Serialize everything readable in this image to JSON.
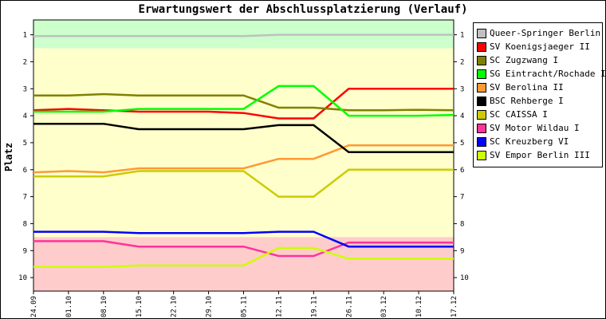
{
  "chart_data": {
    "type": "line",
    "title": "Erwartungswert der Abschlussplatzierung (Verlauf)",
    "ylabel": "Platz",
    "xlabel": "",
    "categories": [
      "24.09",
      "01.10",
      "08.10",
      "15.10",
      "22.10",
      "29.10",
      "05.11",
      "12.11",
      "19.11",
      "26.11",
      "03.12",
      "10.12",
      "17.12"
    ],
    "yticks": [
      1,
      2,
      3,
      4,
      5,
      6,
      7,
      8,
      9,
      10
    ],
    "ylim": [
      0.45,
      10.5
    ],
    "y_inverted": true,
    "legend_position": "right",
    "background_bands": [
      {
        "from": 0.45,
        "to": 1.5,
        "color": "#ccffcc"
      },
      {
        "from": 1.5,
        "to": 8.5,
        "color": "#ffffcc"
      },
      {
        "from": 8.5,
        "to": 10.5,
        "color": "#ffcccc"
      }
    ],
    "series": [
      {
        "name": "Queer-Springer Berlin I",
        "color": "#c0c0c0",
        "values": [
          1.05,
          1.05,
          1.05,
          1.05,
          1.05,
          1.05,
          1.05,
          1.0,
          1.0,
          1.0,
          1.0,
          1.0,
          1.0
        ]
      },
      {
        "name": "SV Koenigsjaeger II",
        "color": "#ff0000",
        "values": [
          3.8,
          3.75,
          3.8,
          3.85,
          3.85,
          3.85,
          3.9,
          4.1,
          4.1,
          3.0,
          3.0,
          3.0,
          3.0
        ]
      },
      {
        "name": "SC Zugzwang I",
        "color": "#808000",
        "values": [
          3.25,
          3.25,
          3.2,
          3.25,
          3.25,
          3.25,
          3.25,
          3.7,
          3.7,
          3.8,
          3.8,
          3.78,
          3.8
        ]
      },
      {
        "name": "SG Eintracht/Rochade I",
        "color": "#00ff00",
        "values": [
          3.85,
          3.85,
          3.85,
          3.75,
          3.75,
          3.75,
          3.75,
          2.9,
          2.9,
          4.0,
          4.0,
          4.0,
          3.97
        ]
      },
      {
        "name": "SV Berolina II",
        "color": "#ff9933",
        "values": [
          6.1,
          6.05,
          6.1,
          5.95,
          5.95,
          5.95,
          5.95,
          5.6,
          5.6,
          5.1,
          5.1,
          5.1,
          5.1
        ]
      },
      {
        "name": "BSC Rehberge I",
        "color": "#000000",
        "values": [
          4.3,
          4.3,
          4.3,
          4.5,
          4.5,
          4.5,
          4.5,
          4.35,
          4.35,
          5.35,
          5.35,
          5.35,
          5.35
        ]
      },
      {
        "name": "SC CAISSA I",
        "color": "#cccc00",
        "values": [
          6.25,
          6.25,
          6.25,
          6.05,
          6.05,
          6.05,
          6.05,
          7.0,
          7.0,
          6.0,
          6.0,
          6.0,
          6.0
        ]
      },
      {
        "name": "SV Motor Wildau I",
        "color": "#ff3399",
        "values": [
          8.65,
          8.65,
          8.65,
          8.85,
          8.85,
          8.85,
          8.85,
          9.2,
          9.2,
          8.7,
          8.7,
          8.7,
          8.7
        ]
      },
      {
        "name": "SC Kreuzberg VI",
        "color": "#0000ff",
        "values": [
          8.3,
          8.3,
          8.3,
          8.35,
          8.35,
          8.35,
          8.35,
          8.3,
          8.3,
          8.85,
          8.85,
          8.85,
          8.85
        ]
      },
      {
        "name": "SV Empor Berlin III",
        "color": "#ccff00",
        "values": [
          9.6,
          9.6,
          9.6,
          9.55,
          9.55,
          9.55,
          9.55,
          8.9,
          8.9,
          9.3,
          9.3,
          9.3,
          9.3
        ]
      }
    ]
  }
}
